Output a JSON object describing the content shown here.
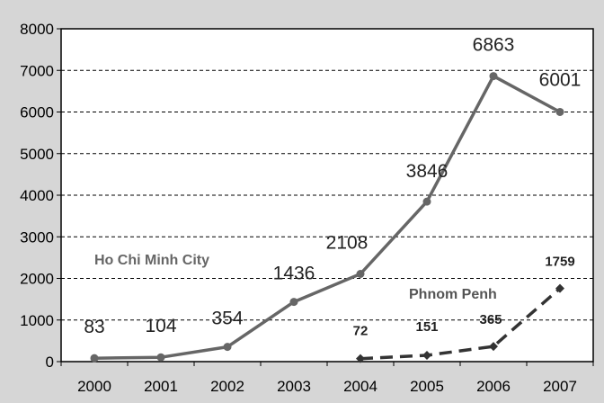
{
  "chart_data": {
    "type": "line",
    "title": "",
    "xlabel": "",
    "ylabel": "",
    "categories": [
      "2000",
      "2001",
      "2002",
      "2003",
      "2004",
      "2005",
      "2006",
      "2007"
    ],
    "ylim": [
      0,
      8000
    ],
    "yticks": [
      0,
      1000,
      2000,
      3000,
      4000,
      5000,
      6000,
      7000,
      8000
    ],
    "grid": "horizontal dashed",
    "series": [
      {
        "name": "Ho Chi Minh City",
        "line_style": "solid",
        "marker": "circle",
        "color": "#666666",
        "values": [
          83,
          104,
          354,
          1436,
          2108,
          3846,
          6863,
          6001
        ]
      },
      {
        "name": "Phnom Penh",
        "line_style": "dashed",
        "marker": "diamond",
        "color": "#333333",
        "values": [
          null,
          null,
          null,
          null,
          72,
          151,
          365,
          1759
        ]
      }
    ]
  }
}
